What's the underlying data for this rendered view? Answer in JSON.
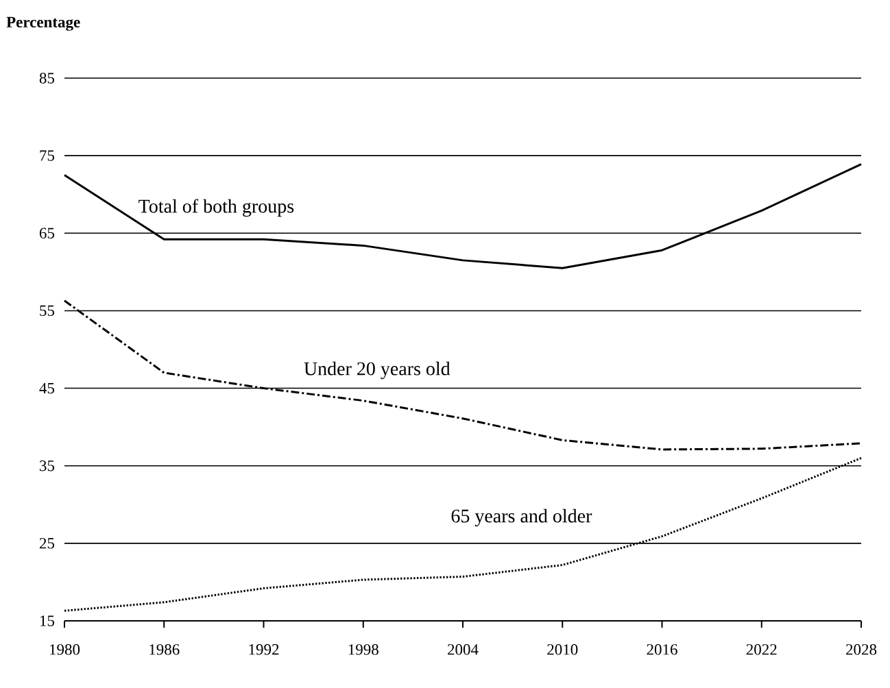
{
  "chart_data": {
    "type": "line",
    "ylabel": "Percentage",
    "x": [
      1980,
      1986,
      1992,
      1998,
      2004,
      2010,
      2016,
      2022,
      2028
    ],
    "series": [
      {
        "name": "Total of both groups",
        "color": "#000000",
        "line_style": "solid",
        "values": [
          72.5,
          64.2,
          64.2,
          63.4,
          61.5,
          60.5,
          62.8,
          67.9,
          73.9
        ]
      },
      {
        "name": "Under 20 years old",
        "color": "#000000",
        "line_style": "dashdot",
        "values": [
          56.3,
          47.0,
          45.0,
          43.4,
          41.1,
          38.3,
          37.1,
          37.2,
          37.9
        ]
      },
      {
        "name": "65 years and older",
        "color": "#000000",
        "line_style": "dotted",
        "values": [
          16.3,
          17.4,
          19.2,
          20.3,
          20.7,
          22.2,
          25.9,
          30.8,
          36.0
        ]
      }
    ],
    "xlim": [
      1980,
      2028
    ],
    "xticks": [
      1980,
      1986,
      1992,
      1998,
      2004,
      2010,
      2016,
      2022,
      2028
    ],
    "ylim": [
      15,
      85
    ],
    "yticks": [
      15,
      25,
      35,
      45,
      55,
      65,
      75,
      85
    ],
    "grid": "y",
    "marker": "none"
  }
}
